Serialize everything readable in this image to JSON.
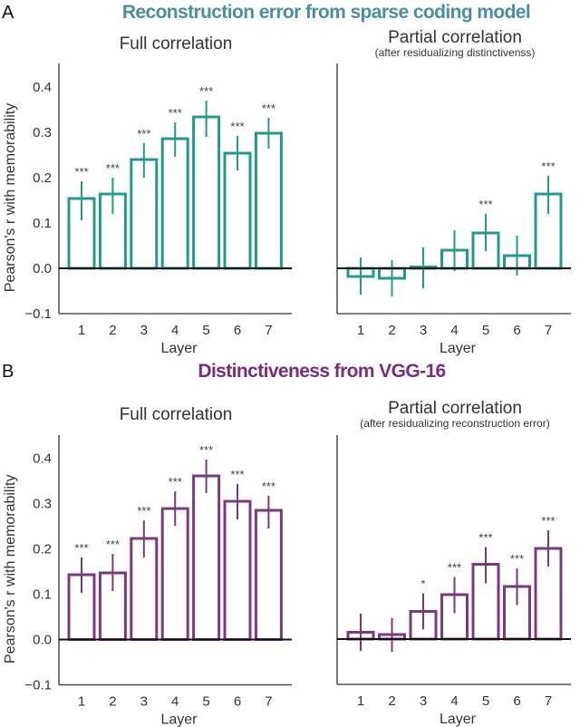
{
  "panels": [
    {
      "letter": "A",
      "title": "Reconstruction error from sparse coding model",
      "title_color": "#4a8fa0",
      "bar_color": "#23998b"
    },
    {
      "letter": "B",
      "title": "Distinctiveness from VGG-16",
      "title_color": "#7a2e78",
      "bar_color": "#7b3a7d"
    }
  ],
  "chart_data": [
    {
      "type": "bar",
      "panel": "A",
      "title": "Full correlation",
      "subtitle": "",
      "xlabel": "Layer",
      "ylabel": "Pearson's r with memorability",
      "categories": [
        "1",
        "2",
        "3",
        "4",
        "5",
        "6",
        "7"
      ],
      "values": [
        0.154,
        0.164,
        0.24,
        0.286,
        0.334,
        0.254,
        0.298
      ],
      "error_low": [
        0.106,
        0.12,
        0.2,
        0.246,
        0.29,
        0.216,
        0.264
      ],
      "error_high": [
        0.192,
        0.2,
        0.276,
        0.322,
        0.37,
        0.292,
        0.332
      ],
      "significance": [
        "***",
        "***",
        "***",
        "***",
        "***",
        "***",
        "***"
      ],
      "ylim": [
        -0.1,
        0.45
      ],
      "yticks": [
        "0.4",
        "0.3",
        "0.2",
        "0.1",
        "0.0",
        "−0.1"
      ],
      "ytick_values": [
        0.4,
        0.3,
        0.2,
        0.1,
        0.0,
        -0.1
      ],
      "show_yaxis": true
    },
    {
      "type": "bar",
      "panel": "A",
      "title": "Partial correlation",
      "subtitle": "(after residualizing distinctivenss)",
      "xlabel": "Layer",
      "ylabel": "",
      "categories": [
        "1",
        "2",
        "3",
        "4",
        "5",
        "6",
        "7"
      ],
      "values": [
        -0.018,
        -0.022,
        0.003,
        0.04,
        0.078,
        0.028,
        0.164
      ],
      "error_low": [
        -0.058,
        -0.062,
        -0.044,
        -0.006,
        0.038,
        -0.016,
        0.12
      ],
      "error_high": [
        0.024,
        0.018,
        0.046,
        0.084,
        0.12,
        0.072,
        0.204
      ],
      "significance": [
        "",
        "",
        "",
        "",
        "***",
        "",
        "***"
      ],
      "ylim": [
        -0.1,
        0.45
      ],
      "yticks": [],
      "ytick_values": [],
      "show_yaxis": false
    },
    {
      "type": "bar",
      "panel": "B",
      "title": "Full correlation",
      "subtitle": "",
      "xlabel": "Layer",
      "ylabel": "Pearson's r with memorability",
      "categories": [
        "1",
        "2",
        "3",
        "4",
        "5",
        "6",
        "7"
      ],
      "values": [
        0.143,
        0.147,
        0.223,
        0.289,
        0.361,
        0.305,
        0.285
      ],
      "error_low": [
        0.103,
        0.107,
        0.181,
        0.251,
        0.323,
        0.265,
        0.245
      ],
      "error_high": [
        0.181,
        0.189,
        0.263,
        0.327,
        0.397,
        0.343,
        0.317
      ],
      "significance": [
        "***",
        "***",
        "***",
        "***",
        "***",
        "***",
        "***"
      ],
      "ylim": [
        -0.1,
        0.45
      ],
      "yticks": [
        "0.4",
        "0.3",
        "0.2",
        "0.1",
        "0.0",
        "−0.1"
      ],
      "ytick_values": [
        0.4,
        0.3,
        0.2,
        0.1,
        0.0,
        -0.1
      ],
      "show_yaxis": true
    },
    {
      "type": "bar",
      "panel": "B",
      "title": "Partial correlation",
      "subtitle": "(after residualizing reconstruction error)",
      "xlabel": "Layer",
      "ylabel": "",
      "categories": [
        "1",
        "2",
        "3",
        "4",
        "5",
        "6",
        "7"
      ],
      "values": [
        0.015,
        0.01,
        0.061,
        0.098,
        0.165,
        0.116,
        0.2
      ],
      "error_low": [
        -0.026,
        -0.028,
        0.021,
        0.057,
        0.123,
        0.075,
        0.16
      ],
      "error_high": [
        0.056,
        0.046,
        0.101,
        0.137,
        0.203,
        0.156,
        0.24
      ],
      "significance": [
        "",
        "",
        "*",
        "***",
        "***",
        "***",
        "***"
      ],
      "ylim": [
        -0.1,
        0.45
      ],
      "yticks": [],
      "ytick_values": [],
      "show_yaxis": false
    }
  ]
}
